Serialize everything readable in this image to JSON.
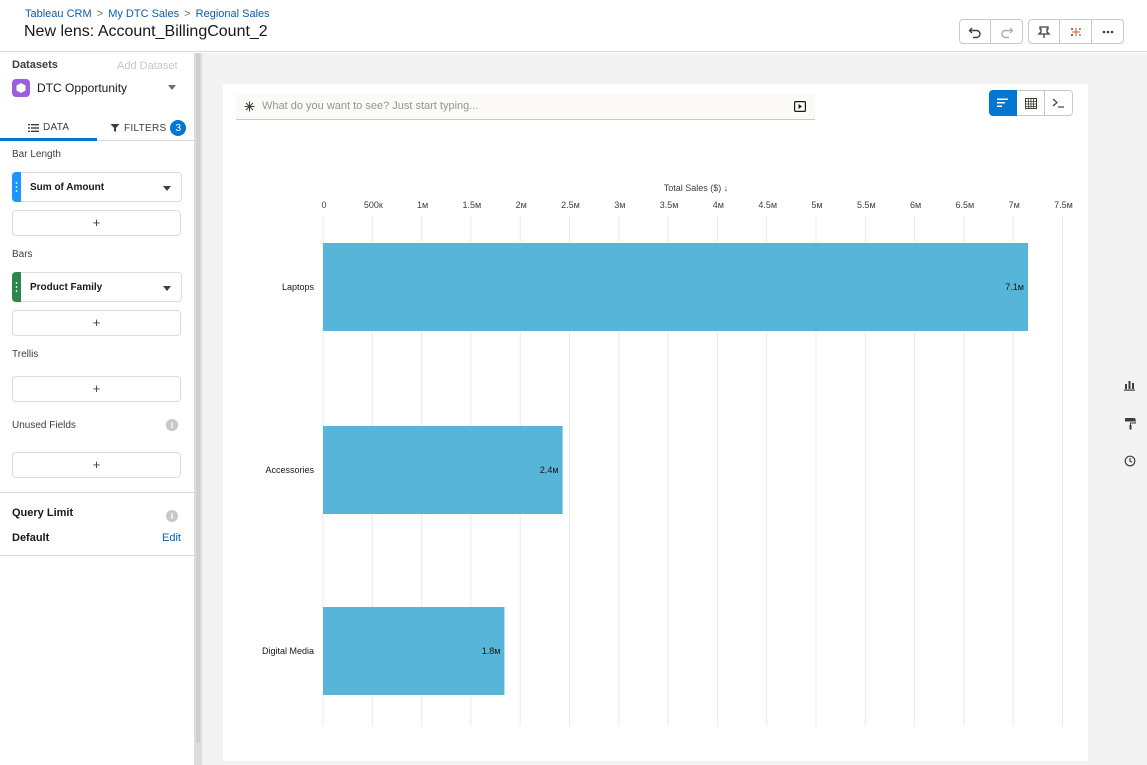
{
  "header": {
    "breadcrumbs": [
      "Tableau CRM",
      "My DTC Sales",
      "Regional Sales"
    ],
    "breadcrumb_separator": ">",
    "title": "New lens: Account_BillingCount_2"
  },
  "toolbar": {
    "icons": [
      "undo-icon",
      "redo-icon",
      "pin-icon",
      "tableau-icon",
      "more-icon"
    ]
  },
  "left_panel": {
    "datasets_label": "Datasets",
    "add_dataset_label": "Add Dataset",
    "dataset_name": "DTC Opportunity",
    "tabs": [
      {
        "label": "DATA",
        "active": true
      },
      {
        "label": "FILTERS",
        "active": false,
        "count": "3"
      }
    ],
    "bar_length": {
      "label": "Bar Length",
      "field": "Sum of Amount",
      "color": "#1b96ff"
    },
    "bars": {
      "label": "Bars",
      "field": "Product Family",
      "color": "#2e844a"
    },
    "trellis": {
      "label": "Trellis"
    },
    "unused_fields": {
      "label": "Unused Fields"
    },
    "add_symbol": "+",
    "query_limit": {
      "label": "Query Limit",
      "value": "Default",
      "edit_label": "Edit"
    }
  },
  "main": {
    "search_placeholder": "What do you want to see? Just start typing...",
    "view_toggle": [
      "chart-icon",
      "table-icon",
      "query-icon"
    ]
  },
  "right_rail": {
    "icons": [
      "chart-properties-icon",
      "format-icon",
      "history-icon"
    ]
  },
  "chart_data": {
    "type": "bar",
    "orientation": "horizontal",
    "title": "",
    "xlabel": "Total Sales ($) ↓",
    "categories": [
      "Laptops",
      "Accessories",
      "Digital Media"
    ],
    "values": [
      7150000,
      2430000,
      1840000
    ],
    "data_labels": [
      "7.1м",
      "2.4м",
      "1.8м"
    ],
    "xlim": [
      0,
      7500000
    ],
    "tick_values": [
      0,
      500000,
      1000000,
      1500000,
      2000000,
      2500000,
      3000000,
      3500000,
      4000000,
      4500000,
      5000000,
      5500000,
      6000000,
      6500000,
      7000000,
      7500000
    ],
    "tick_labels": [
      "0",
      "500к",
      "1м",
      "1.5м",
      "2м",
      "2.5м",
      "3м",
      "3.5м",
      "4м",
      "4.5м",
      "5м",
      "5.5м",
      "6м",
      "6.5м",
      "7м",
      "7.5м"
    ],
    "bar_color": "#56b5d8",
    "grid": true
  }
}
